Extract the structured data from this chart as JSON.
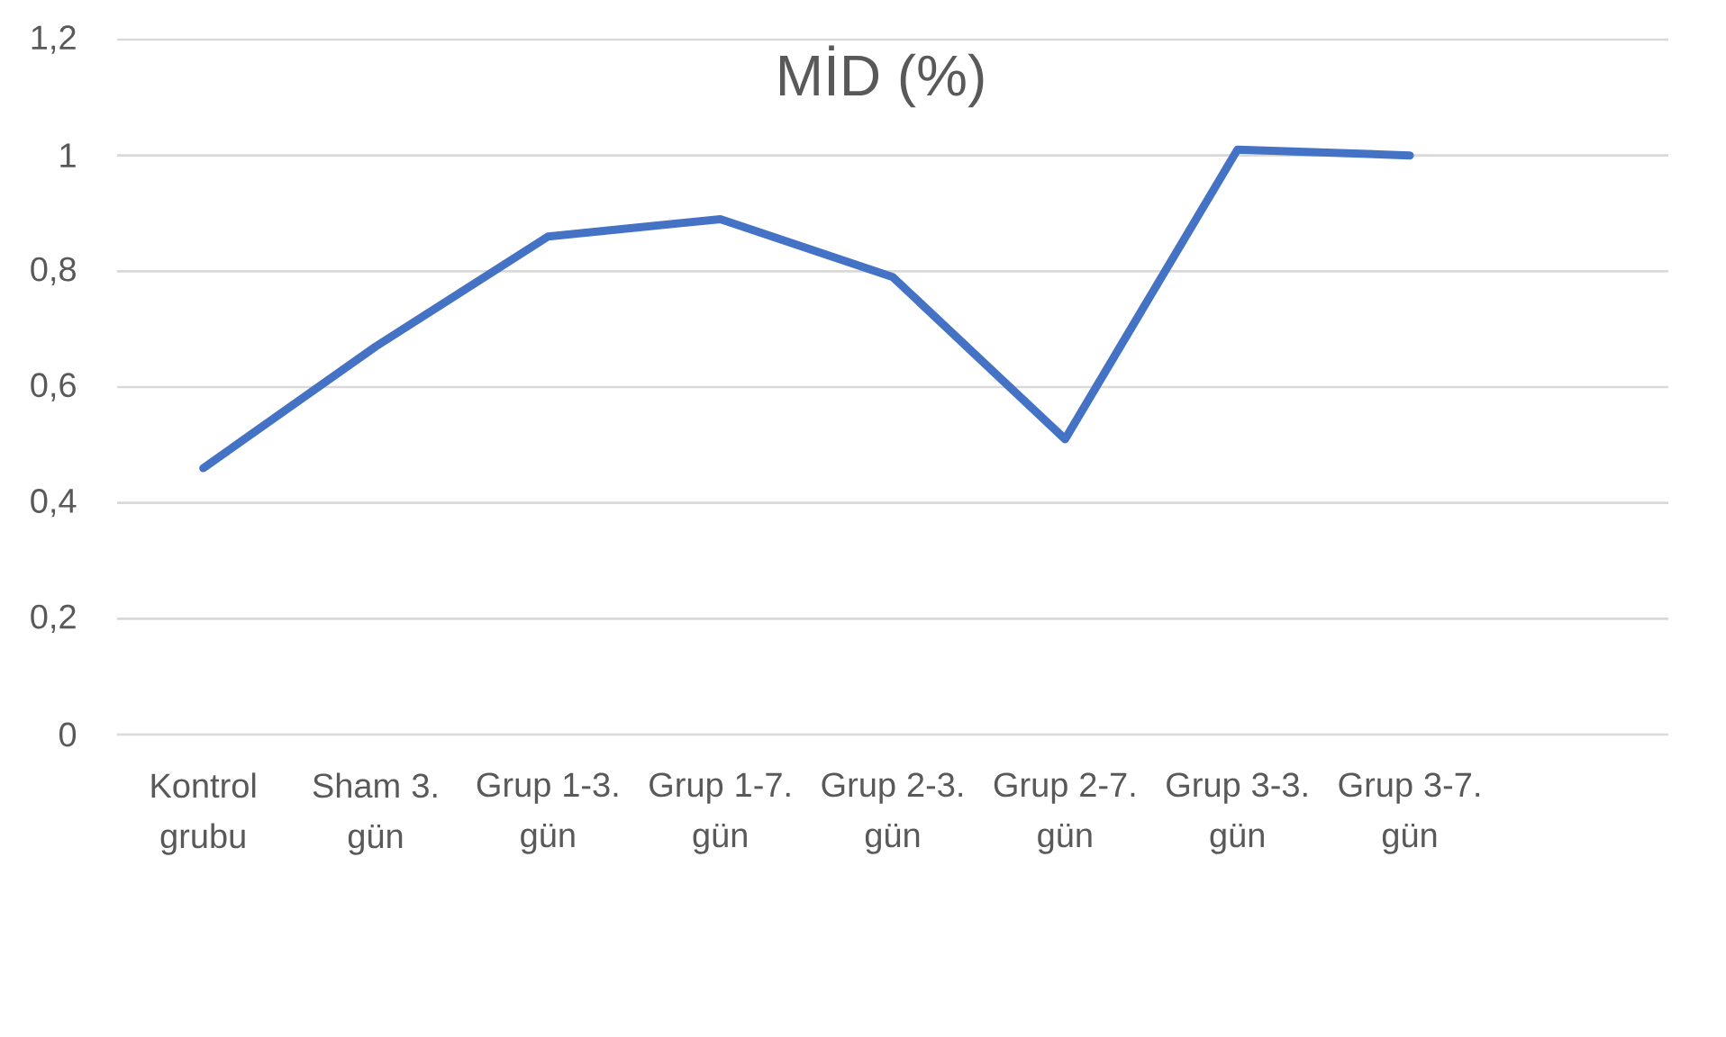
{
  "chart_data": {
    "type": "line",
    "title": "MİD (%)",
    "categories": [
      "Kontrol grubu",
      "Sham 3. gün",
      "Grup 1-3. gün",
      "Grup 1-7. gün",
      "Grup 2-3. gün",
      "Grup 2-7. gün",
      "Grup 3-3. gün",
      "Grup 3-7. gün",
      null
    ],
    "series": [
      {
        "color": "#4472c4",
        "values": [
          0.46,
          0.67,
          0.86,
          0.89,
          0.79,
          0.51,
          1.01,
          1,
          null
        ]
      }
    ],
    "ylim": [
      0,
      1.2
    ],
    "yticks": [
      0,
      {
        "value": 0.2,
        "label": "0,2"
      },
      {
        "value": 0.4,
        "label": "0,4"
      },
      {
        "value": 0.6,
        "label": "0,6"
      },
      {
        "value": 0.8,
        "label": "0,8"
      },
      1,
      {
        "value": 1.2,
        "label": "1,2"
      }
    ],
    "grid": "y",
    "marker": "none",
    "line_style": "solid"
  }
}
